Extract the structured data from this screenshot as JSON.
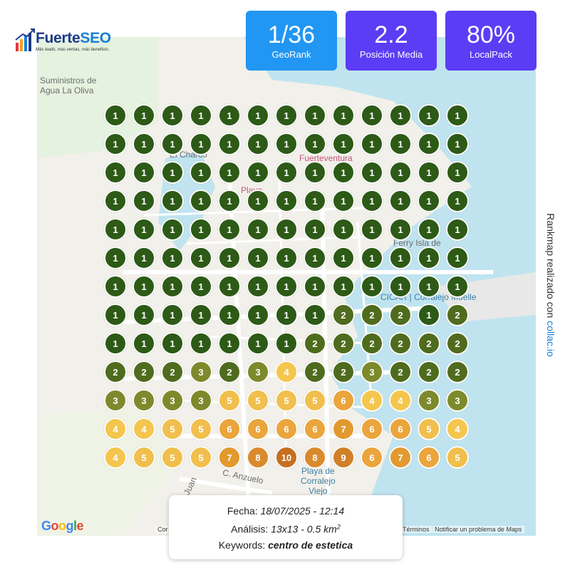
{
  "brand": {
    "name_part1": "Fuerte",
    "name_part2": "SEO",
    "tagline": "Más leads, más ventas, más beneficio."
  },
  "stats": [
    {
      "value": "1/36",
      "label": "GeoRank",
      "color": "#2196f3"
    },
    {
      "value": "2.2",
      "label": "Posición Media",
      "color": "#5b3df5"
    },
    {
      "value": "80%",
      "label": "LocalPack",
      "color": "#5b3df5"
    }
  ],
  "map": {
    "labels": {
      "poi_supplies": "Suministros de\nAgua La Oliva",
      "charco": "El Charco",
      "fuerteventura": "Fuerteventura",
      "playa_dist": "Playa",
      "ferry": "Ferry Isla de",
      "muelle": "CICAR | Corralejo Muelle",
      "playa_corralejo": "Playa de\nCorralejo\nViejo",
      "anzuelo": "C. Anzuelo",
      "avenida": "Av. Juan"
    },
    "google_logo": "Google",
    "footer_left": "Cor",
    "footer_terms": "Términos",
    "footer_report": "Notificar un problema de Maps"
  },
  "grid": {
    "ranks": [
      [
        1,
        1,
        1,
        1,
        1,
        1,
        1,
        1,
        1,
        1,
        1,
        1,
        1
      ],
      [
        1,
        1,
        1,
        1,
        1,
        1,
        1,
        1,
        1,
        1,
        1,
        1,
        1
      ],
      [
        1,
        1,
        1,
        1,
        1,
        1,
        1,
        1,
        1,
        1,
        1,
        1,
        1
      ],
      [
        1,
        1,
        1,
        1,
        1,
        1,
        1,
        1,
        1,
        1,
        1,
        1,
        1
      ],
      [
        1,
        1,
        1,
        1,
        1,
        1,
        1,
        1,
        1,
        1,
        1,
        1,
        1
      ],
      [
        1,
        1,
        1,
        1,
        1,
        1,
        1,
        1,
        1,
        1,
        1,
        1,
        1
      ],
      [
        1,
        1,
        1,
        1,
        1,
        1,
        1,
        1,
        1,
        1,
        1,
        1,
        1
      ],
      [
        1,
        1,
        1,
        1,
        1,
        1,
        1,
        1,
        2,
        2,
        2,
        1,
        2
      ],
      [
        1,
        1,
        1,
        1,
        1,
        1,
        1,
        2,
        2,
        2,
        2,
        2,
        2
      ],
      [
        2,
        2,
        2,
        3,
        2,
        3,
        4,
        2,
        2,
        3,
        2,
        2,
        2
      ],
      [
        3,
        3,
        3,
        3,
        5,
        5,
        5,
        5,
        6,
        4,
        4,
        3,
        3
      ],
      [
        4,
        4,
        5,
        5,
        6,
        6,
        6,
        6,
        7,
        6,
        6,
        5,
        4
      ],
      [
        4,
        5,
        5,
        5,
        7,
        8,
        10,
        8,
        9,
        6,
        7,
        6,
        5
      ]
    ],
    "rank_colors": {
      "1": "#2d5a16",
      "2": "#4f6c1e",
      "3": "#7d8a2c",
      "4": "#f4c64e",
      "5": "#f1bf4d",
      "6": "#eaa53c",
      "7": "#e2992f",
      "8": "#d98a2c",
      "9": "#d08028",
      "10": "#c66f20"
    }
  },
  "info": {
    "date_label": "Fecha:",
    "date_value": "18/07/2025 - 12:14",
    "analysis_label": "Análisis:",
    "analysis_value": "13x13 - 0.5 km",
    "analysis_sup": "2",
    "keywords_label": "Keywords:",
    "keywords_value": "centro de estetica"
  },
  "side_note": {
    "text": "Rankmap realizado con",
    "link": "collac.io"
  }
}
